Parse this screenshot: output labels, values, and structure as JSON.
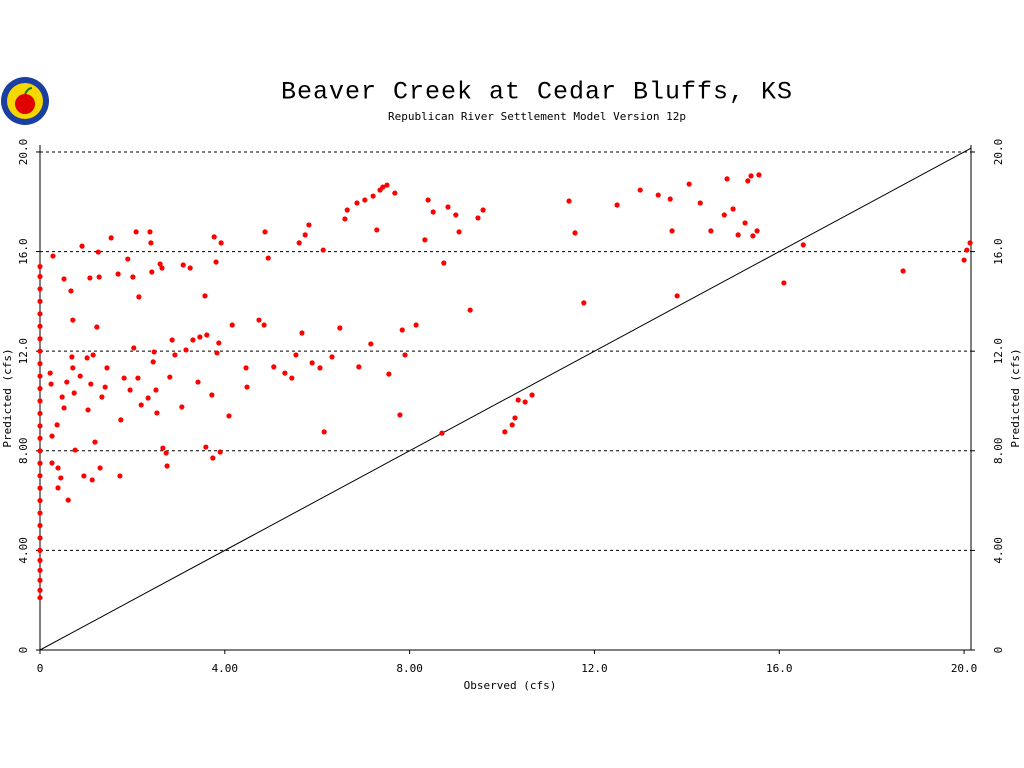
{
  "chart_data": {
    "type": "scatter",
    "title": "Beaver Creek at Cedar Bluffs, KS",
    "subtitle": "Republican River Settlement Model Version 12p",
    "x_label": "Observed (cfs)",
    "y_label": "Predicted (cfs)",
    "color": "#ff0000",
    "grid": true,
    "xlim": [
      0,
      20.15
    ],
    "ylim": [
      0,
      20.28
    ],
    "xticks": [
      0,
      {
        "value": 4,
        "label": "4.00"
      },
      {
        "value": 8,
        "label": "8.00"
      },
      {
        "value": 12,
        "label": "12.0"
      },
      {
        "value": 16,
        "label": "16.0"
      },
      {
        "value": 20,
        "label": "20.0"
      }
    ],
    "yticks": [
      0,
      {
        "value": 4,
        "label": "4.00"
      },
      {
        "value": 8,
        "label": "8.00"
      },
      {
        "value": 12,
        "label": "12.0"
      },
      {
        "value": 16,
        "label": "16.0"
      },
      {
        "value": 20,
        "label": "20.0"
      }
    ],
    "x": [
      0,
      0,
      0,
      0,
      0,
      0,
      0,
      0,
      0,
      0,
      0,
      0,
      0,
      0,
      0,
      0,
      0,
      0,
      0,
      0,
      0,
      0,
      0,
      0,
      0,
      0,
      0,
      0,
      0,
      0.28,
      0.22,
      0.24,
      0.26,
      0.26,
      0.37,
      0.39,
      0.39,
      0.45,
      0.48,
      0.52,
      0.52,
      0.61,
      0.58,
      0.67,
      0.69,
      0.71,
      0.71,
      0.74,
      0.76,
      0.87,
      0.91,
      0.95,
      1.02,
      1.04,
      1.08,
      1.1,
      1.13,
      1.15,
      1.19,
      1.23,
      1.26,
      1.28,
      1.3,
      1.34,
      1.41,
      1.45,
      1.54,
      1.69,
      1.73,
      1.75,
      1.82,
      1.9,
      1.95,
      2.01,
      2.03,
      2.08,
      2.12,
      2.14,
      2.19,
      2.34,
      2.38,
      2.4,
      2.42,
      2.45,
      2.47,
      2.51,
      2.53,
      2.6,
      2.64,
      2.66,
      2.73,
      2.75,
      2.81,
      2.86,
      2.92,
      3.07,
      3.1,
      3.16,
      3.25,
      3.31,
      3.42,
      3.46,
      3.57,
      3.59,
      3.61,
      3.72,
      3.74,
      3.77,
      3.81,
      3.83,
      3.87,
      3.9,
      3.92,
      4.09,
      4.16,
      4.46,
      4.48,
      4.74,
      4.85,
      4.87,
      4.94,
      5.06,
      5.3,
      5.45,
      5.54,
      5.61,
      5.67,
      5.74,
      5.82,
      5.89,
      6.06,
      6.13,
      6.15,
      6.32,
      6.49,
      6.6,
      6.65,
      6.86,
      6.9,
      7.03,
      7.16,
      7.21,
      7.29,
      7.36,
      7.42,
      7.51,
      7.55,
      7.68,
      7.79,
      7.84,
      7.9,
      8.14,
      8.33,
      8.4,
      8.51,
      8.7,
      8.74,
      8.83,
      9.0,
      9.07,
      9.31,
      9.48,
      9.59,
      10.06,
      10.22,
      10.28,
      10.35,
      10.5,
      10.65,
      11.45,
      11.58,
      11.77,
      12.49,
      12.99,
      13.38,
      13.64,
      13.68,
      13.79,
      14.05,
      14.29,
      14.52,
      14.81,
      14.87,
      15.0,
      15.11,
      15.26,
      15.32,
      15.39,
      15.43,
      15.52,
      15.56,
      16.1,
      16.52,
      18.68,
      20.0,
      20.06,
      20.13
    ],
    "values": [
      2.1,
      2.4,
      2.8,
      3.2,
      3.6,
      4.0,
      4.5,
      5.0,
      5.5,
      6.0,
      6.5,
      7.0,
      7.5,
      8.0,
      8.5,
      9.0,
      9.5,
      10.0,
      10.5,
      11.0,
      11.5,
      12.0,
      12.5,
      13.0,
      13.5,
      14.0,
      14.5,
      15.0,
      15.4,
      15.82,
      11.12,
      10.68,
      8.59,
      7.51,
      9.04,
      7.31,
      6.51,
      6.91,
      10.16,
      14.9,
      9.72,
      6.02,
      10.76,
      14.42,
      11.77,
      13.25,
      11.33,
      10.32,
      8.03,
      11.0,
      16.22,
      6.99,
      11.73,
      9.64,
      14.94,
      10.68,
      6.83,
      11.85,
      8.35,
      12.97,
      15.98,
      14.98,
      7.31,
      10.16,
      10.56,
      11.33,
      16.55,
      15.1,
      6.99,
      9.24,
      10.92,
      15.7,
      10.44,
      14.98,
      12.13,
      16.79,
      10.92,
      14.18,
      9.84,
      10.12,
      16.79,
      16.35,
      15.18,
      11.57,
      11.97,
      10.44,
      9.52,
      15.5,
      15.34,
      8.11,
      7.91,
      7.39,
      10.96,
      12.45,
      11.85,
      9.76,
      15.46,
      12.05,
      15.34,
      12.45,
      10.76,
      12.57,
      14.22,
      8.15,
      12.65,
      10.24,
      7.71,
      16.59,
      15.58,
      11.93,
      12.33,
      7.95,
      16.35,
      9.4,
      13.05,
      11.33,
      10.56,
      13.25,
      13.05,
      16.79,
      15.74,
      11.37,
      11.12,
      10.92,
      11.85,
      16.35,
      12.73,
      16.67,
      17.07,
      11.53,
      11.33,
      16.06,
      8.76,
      11.77,
      12.93,
      17.31,
      17.67,
      17.95,
      11.37,
      18.07,
      12.29,
      18.23,
      16.87,
      18.47,
      18.59,
      18.67,
      11.08,
      18.35,
      9.44,
      12.85,
      11.85,
      13.05,
      16.47,
      18.07,
      17.59,
      8.71,
      15.54,
      17.79,
      17.47,
      16.79,
      13.65,
      17.35,
      17.67,
      8.76,
      9.04,
      9.32,
      10.04,
      9.96,
      10.24,
      18.03,
      16.75,
      13.94,
      17.87,
      18.47,
      18.27,
      18.11,
      16.83,
      14.22,
      18.71,
      17.95,
      16.83,
      17.47,
      18.92,
      17.71,
      16.67,
      17.15,
      18.84,
      19.04,
      16.63,
      16.83,
      19.08,
      14.74,
      16.27,
      15.22,
      15.66,
      16.06,
      16.35
    ]
  }
}
